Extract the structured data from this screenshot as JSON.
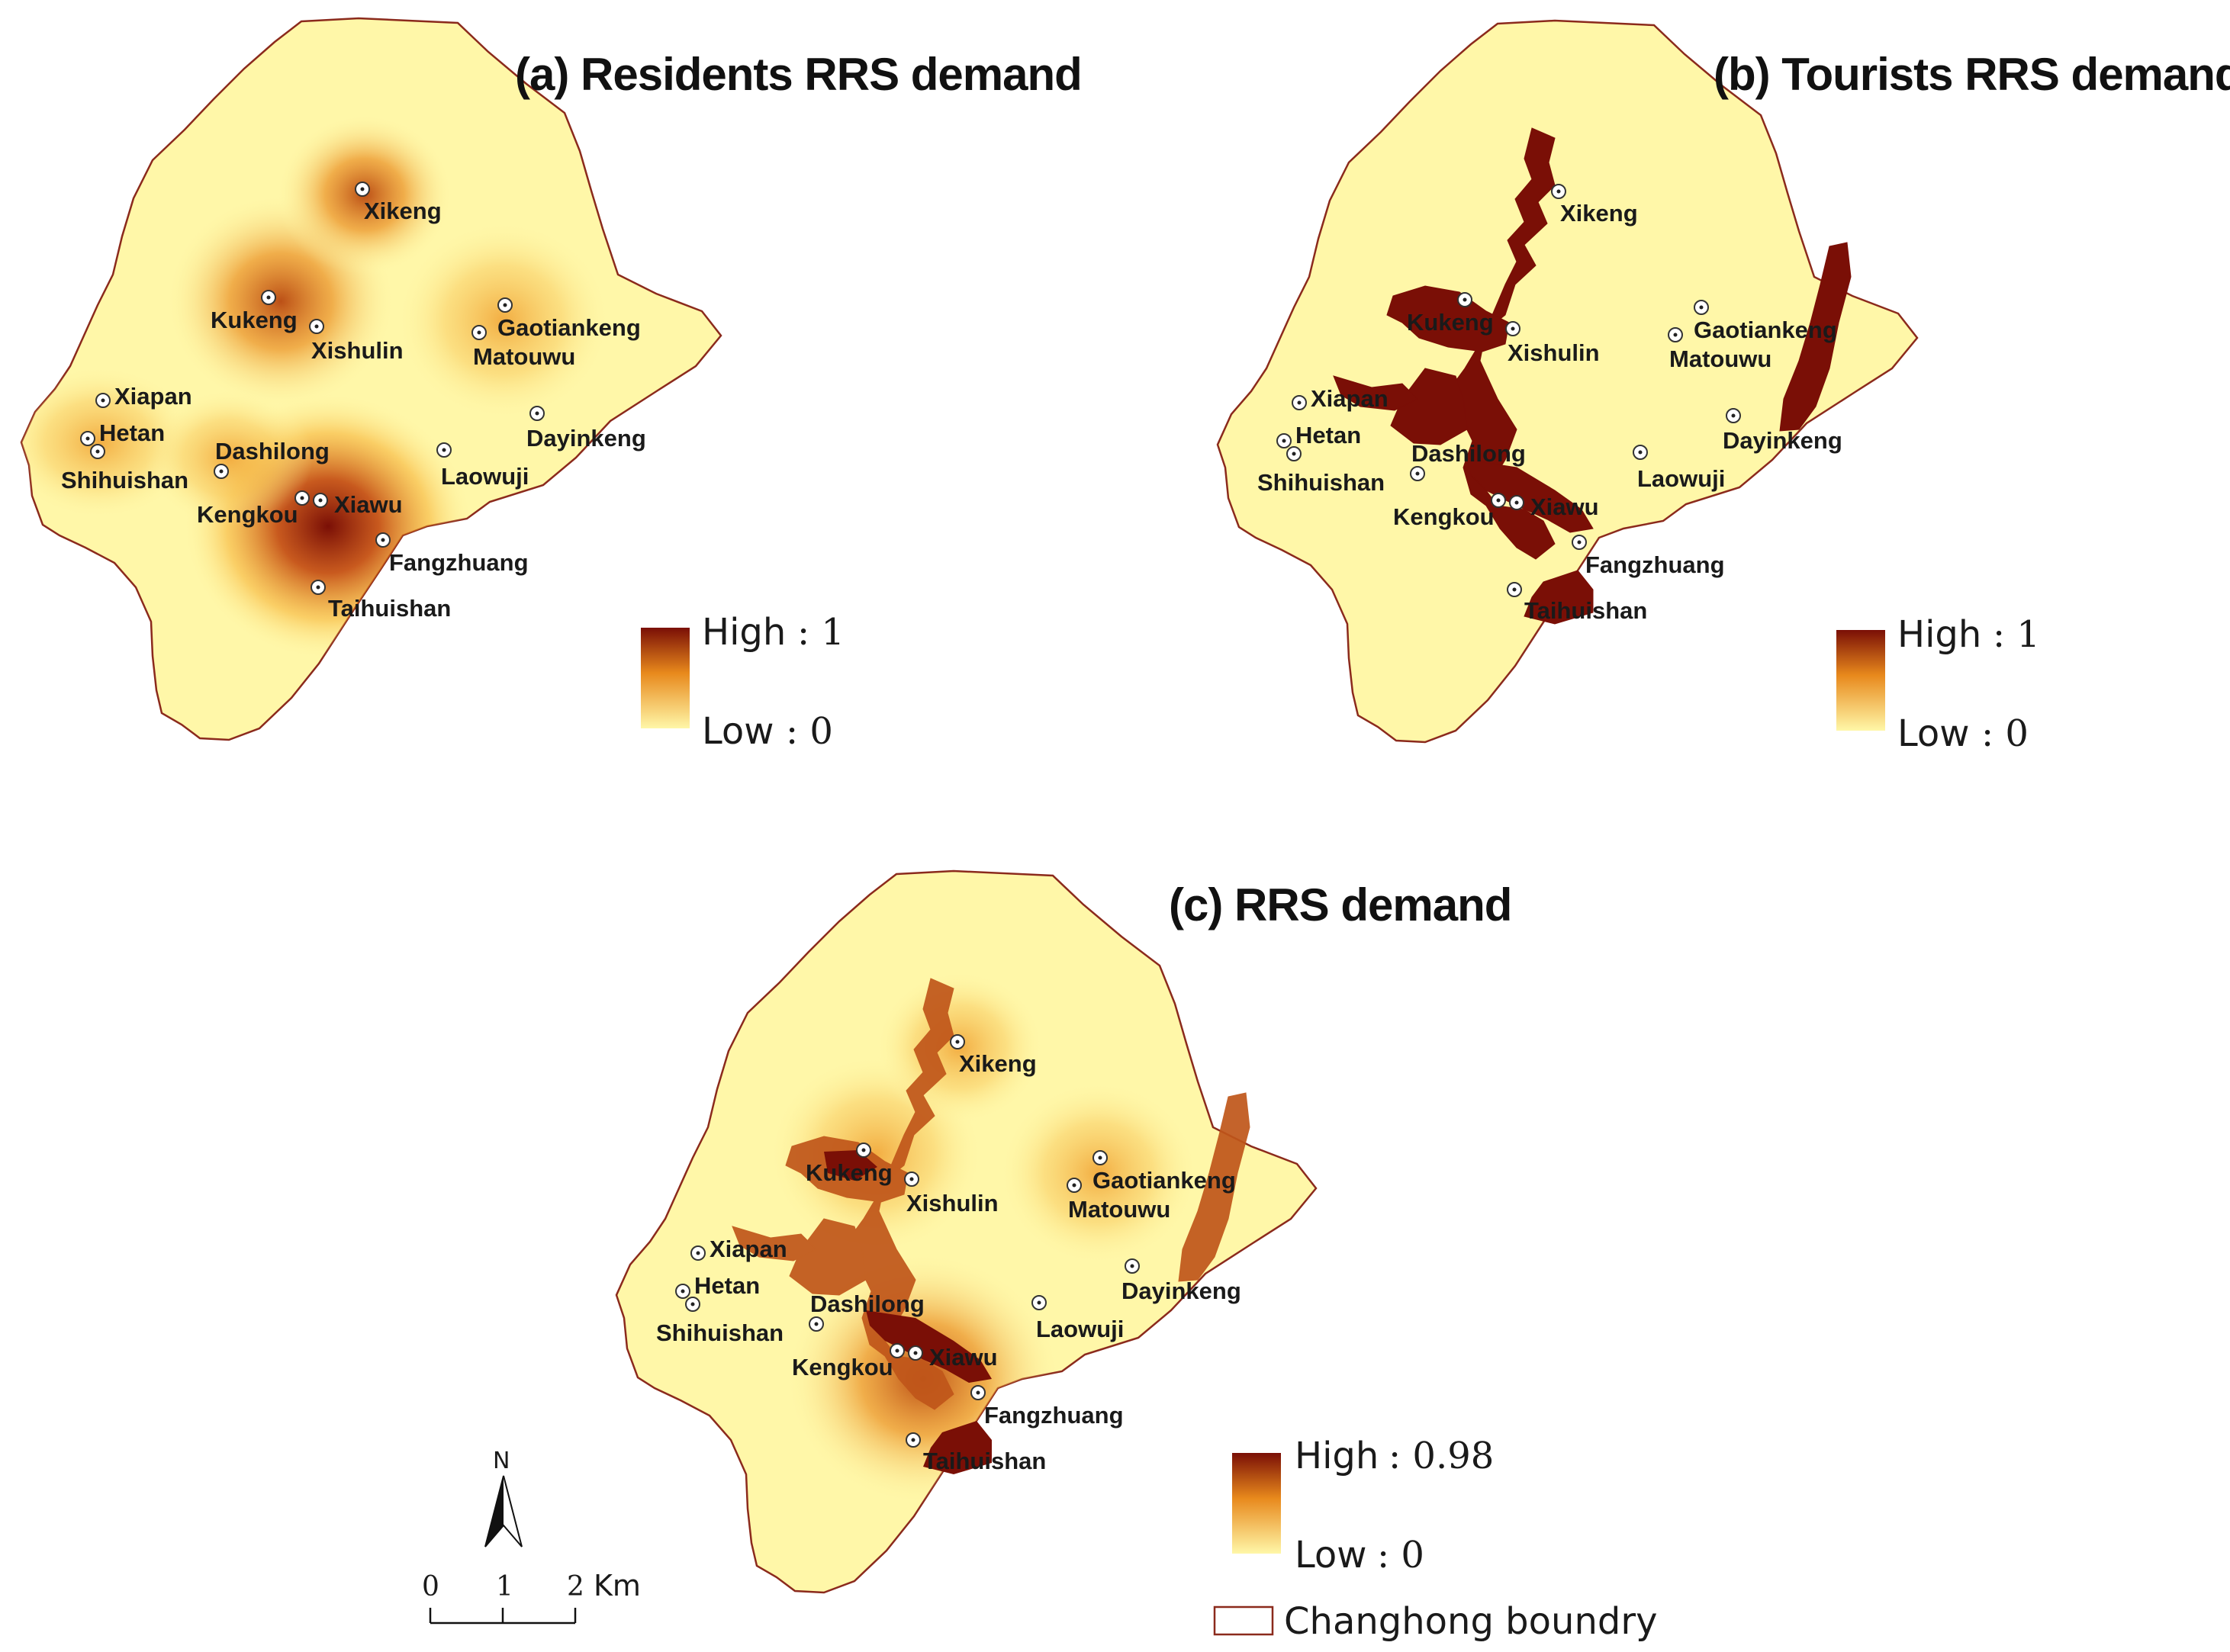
{
  "colors": {
    "low": "#fff7a8",
    "mid": "#f5a623",
    "high": "#7a0f06",
    "boundary": "#8b2a1c",
    "site_dot": "#ffffff"
  },
  "site_names": [
    "Xikeng",
    "Kukeng",
    "Xishulin",
    "Gaotiankeng",
    "Matouwu",
    "Xiapan",
    "Hetan",
    "Shihuishan",
    "Dashilong",
    "Dayinkeng",
    "Laowuji",
    "Kengkou",
    "Xiawu",
    "Fangzhuang",
    "Taihuishan"
  ],
  "panels": [
    {
      "id": "a",
      "title": "(a) Residents RRS demand",
      "legend": {
        "high_label": "High",
        "high_value": ": 1",
        "low_label": "Low",
        "low_value": ": 0"
      }
    },
    {
      "id": "b",
      "title": "(b) Tourists RRS demand",
      "legend": {
        "high_label": "High",
        "high_value": ": 1",
        "low_label": "Low",
        "low_value": ": 0"
      }
    },
    {
      "id": "c",
      "title": "(c)  RRS demand",
      "legend": {
        "high_label": "High",
        "high_value": ": 0.98",
        "low_label": "Low",
        "low_value": ": 0"
      }
    }
  ],
  "boundary_legend": {
    "label": "Changhong boundry"
  },
  "north_arrow": {
    "label": "N"
  },
  "scale_bar": {
    "ticks": [
      "0",
      "1",
      "2"
    ],
    "unit": "Km"
  }
}
